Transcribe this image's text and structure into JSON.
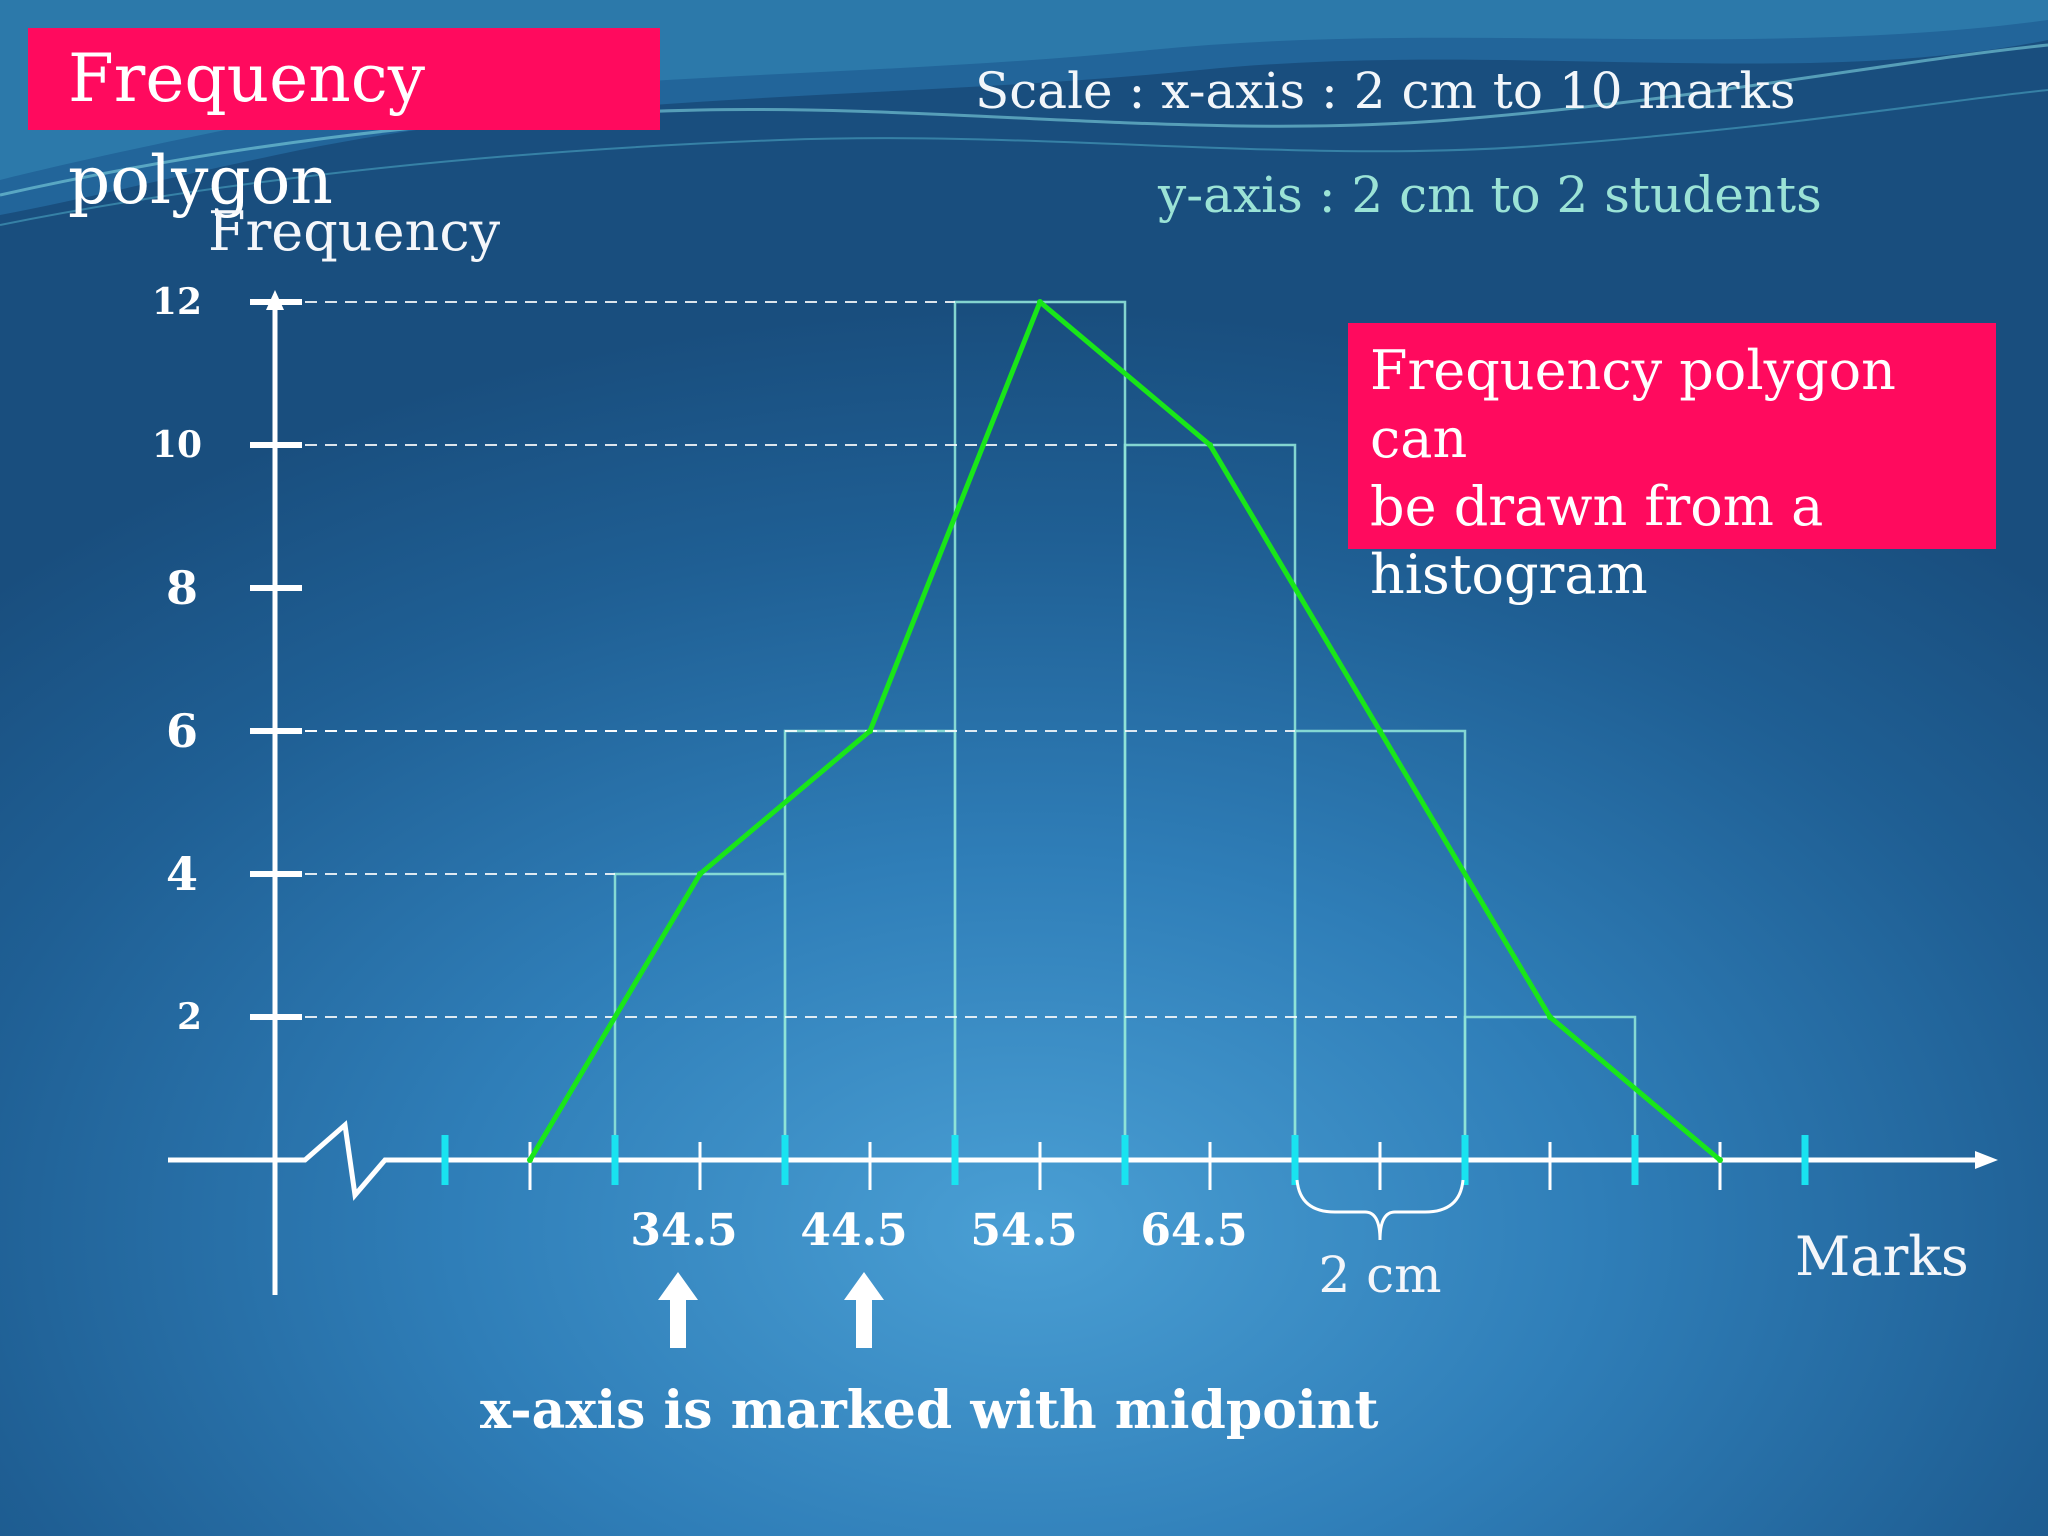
{
  "title": "Frequency polygon",
  "scale": {
    "x_axis_text": "Scale :  x-axis :  2 cm to 10 marks",
    "y_axis_text": "y-axis :  2 cm to 2 students"
  },
  "note": {
    "line1": "Frequency polygon can",
    "line2": "be drawn from a",
    "line3": "histogram"
  },
  "footer": "x-axis is marked with midpoint",
  "brace_label": "2 cm",
  "colors": {
    "title_bg": "#ff0a5e",
    "polygon": "#19e619",
    "histogram": "#8fe3d8",
    "tick_cyan": "#19e3f0",
    "axis": "#ffffff"
  },
  "chart_data": {
    "type": "line",
    "ylabel": "Frequency",
    "xlabel": "Marks",
    "ylim": [
      0,
      12
    ],
    "y_ticks": [
      "2",
      "4",
      "6",
      "8",
      "10",
      "12"
    ],
    "y_tick_values": [
      2,
      4,
      6,
      8,
      10,
      12
    ],
    "x_tick_labels": [
      "34.5",
      "44.5",
      "54.5",
      "64.5"
    ],
    "x_tick_values": [
      34.5,
      44.5,
      54.5,
      64.5
    ],
    "histogram": {
      "class_boundaries": [
        29.5,
        39.5,
        49.5,
        59.5,
        69.5,
        79.5,
        89.5
      ],
      "frequencies": [
        4,
        6,
        12,
        10,
        6,
        2
      ]
    },
    "series": [
      {
        "x": [
          24.5,
          34.5,
          44.5,
          54.5,
          64.5,
          74.5,
          84.5,
          94.5
        ],
        "values": [
          0,
          4,
          6,
          12,
          10,
          6,
          2,
          0
        ]
      }
    ]
  }
}
